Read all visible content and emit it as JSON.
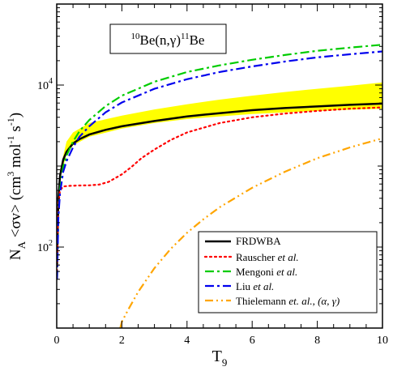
{
  "chart_data": {
    "type": "line",
    "title": "10Be(n,γ)11Be",
    "title_parts": {
      "pre_sup": "10",
      "pre": "Be(n,γ)",
      "mid_sup": "11",
      "post": "Be"
    },
    "xlabel": "T9",
    "xlabel_parts": {
      "base": "T",
      "sub": "9"
    },
    "ylabel": "NA <σv> (cm3 mol-1 s-1)",
    "ylabel_parts": {
      "n": "N",
      "n_sub": "A",
      "sigma": " <σv> (cm",
      "cm_sup": "3",
      "mol": " mol",
      "mol_sup": "-1",
      "s": " s",
      "s_sup": "-1",
      "close": ")"
    },
    "xlim": [
      0,
      10
    ],
    "ylim": [
      10,
      100000
    ],
    "y_scale": "log",
    "x_ticks": [
      0,
      2,
      4,
      6,
      8,
      10
    ],
    "x_tick_labels": [
      "0",
      "2",
      "4",
      "6",
      "8",
      "10"
    ],
    "y_major_ticks": [
      100,
      10000
    ],
    "y_tick_labels": [
      {
        "base": "10",
        "exp": "2"
      },
      {
        "base": "10",
        "exp": "4"
      }
    ],
    "grid": false,
    "legend_position": "bottom-right",
    "band": {
      "name": "",
      "color": "#ffff00",
      "x": [
        0.02,
        0.1,
        0.3,
        0.5,
        1,
        2,
        3,
        4,
        5,
        6,
        7,
        8,
        9,
        10
      ],
      "upper": [
        160,
        900,
        2000,
        2600,
        3400,
        4200,
        5000,
        5800,
        6600,
        7400,
        8200,
        9000,
        9800,
        10800
      ],
      "lower": [
        150,
        700,
        1400,
        1800,
        2300,
        2900,
        3400,
        3800,
        4100,
        4400,
        4600,
        4800,
        4950,
        5100
      ]
    },
    "series": [
      {
        "name": "FRDWBA",
        "color": "#000000",
        "dash": "solid",
        "x": [
          0.01,
          0.05,
          0.1,
          0.2,
          0.3,
          0.5,
          0.7,
          1,
          1.5,
          2,
          3,
          4,
          5,
          6,
          7,
          8,
          9,
          10
        ],
        "y": [
          60,
          390,
          750,
          1200,
          1500,
          1900,
          2150,
          2450,
          2800,
          3100,
          3600,
          4100,
          4500,
          4900,
          5200,
          5450,
          5700,
          5900
        ]
      },
      {
        "name": "Rauscher et al.",
        "color": "#ff0000",
        "dash": "dotted",
        "x": [
          0.01,
          0.03,
          0.05,
          0.1,
          0.2,
          0.4,
          0.7,
          1,
          1.3,
          1.6,
          2,
          2.3,
          2.6,
          3,
          3.5,
          4,
          5,
          6,
          7,
          8,
          9,
          10
        ],
        "y": [
          50,
          200,
          330,
          500,
          560,
          570,
          575,
          578,
          590,
          640,
          790,
          980,
          1250,
          1600,
          2100,
          2600,
          3400,
          4000,
          4450,
          4800,
          5100,
          5300
        ]
      },
      {
        "name": "Mengoni et al.",
        "color": "#00cc00",
        "dash": "dashdot",
        "x": [
          0.01,
          0.05,
          0.1,
          0.2,
          0.3,
          0.5,
          0.7,
          1,
          1.5,
          2,
          3,
          4,
          5,
          6,
          7,
          8,
          9,
          10
        ],
        "y": [
          40,
          250,
          520,
          980,
          1350,
          2000,
          2700,
          3700,
          5500,
          7400,
          11000,
          14500,
          17500,
          20500,
          23500,
          26500,
          29000,
          31500
        ]
      },
      {
        "name": "Liu et al.",
        "color": "#0000ee",
        "dash": "dashdot",
        "x": [
          0.01,
          0.05,
          0.1,
          0.2,
          0.3,
          0.5,
          0.7,
          1,
          1.5,
          2,
          3,
          4,
          5,
          6,
          7,
          8,
          9,
          10
        ],
        "y": [
          40,
          230,
          460,
          850,
          1150,
          1700,
          2300,
          3100,
          4600,
          6100,
          9000,
          11800,
          14500,
          17000,
          19500,
          22000,
          24000,
          26000
        ]
      },
      {
        "name": "Thielemann et. al., (α, γ)",
        "color": "#ffa500",
        "dash": "dashdotdot",
        "x": [
          1.95,
          2.0,
          2.2,
          2.5,
          3,
          3.5,
          4,
          4.5,
          5,
          6,
          7,
          8,
          9,
          10
        ],
        "y": [
          10,
          12,
          17,
          28,
          55,
          95,
          150,
          220,
          310,
          540,
          850,
          1250,
          1700,
          2200
        ]
      }
    ],
    "legend": [
      {
        "plain": "FRDWBA",
        "italic": "",
        "tail": ""
      },
      {
        "plain": "Rauscher ",
        "italic": "et al.",
        "tail": ""
      },
      {
        "plain": "Mengoni ",
        "italic": "et al.",
        "tail": ""
      },
      {
        "plain": "Liu ",
        "italic": "et al.",
        "tail": ""
      },
      {
        "plain": "Thielemann  ",
        "italic": "et. al., (α, γ)",
        "tail": ""
      }
    ]
  }
}
